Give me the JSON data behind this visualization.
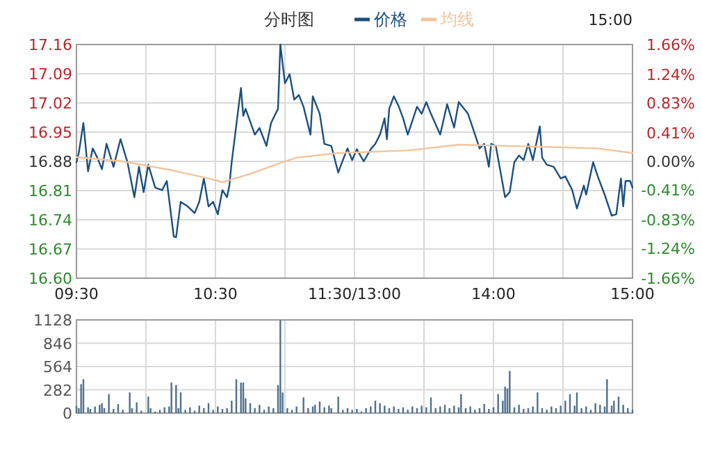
{
  "chart_data": [
    {
      "type": "line",
      "title": "分时图",
      "legend": "top",
      "grid": true,
      "annotations": [
        "15:00"
      ],
      "categories": [
        "09:30",
        null,
        null,
        null,
        null,
        null,
        null,
        null,
        null,
        null,
        null,
        null,
        null,
        null,
        null,
        null,
        null,
        null,
        null,
        null,
        null,
        null,
        null,
        null,
        null,
        null,
        null,
        null,
        null,
        null,
        null,
        null,
        null,
        null,
        null,
        null,
        null,
        null,
        null,
        null,
        null,
        null,
        null,
        null,
        null,
        null,
        null,
        null,
        null,
        null,
        null,
        null,
        null,
        null,
        null,
        null,
        null,
        null,
        null,
        null,
        "10:30",
        null,
        null,
        null,
        null,
        null,
        null,
        null,
        null,
        null,
        null,
        null,
        null,
        null,
        null,
        null,
        null,
        null,
        null,
        null,
        null,
        null,
        null,
        null,
        null,
        null,
        null,
        null,
        null,
        null,
        null,
        null,
        null,
        null,
        null,
        null,
        null,
        null,
        null,
        null,
        null,
        null,
        null,
        null,
        null,
        null,
        null,
        null,
        null,
        null,
        null,
        null,
        null,
        null,
        null,
        null,
        null,
        null,
        null,
        null,
        "11:30/13:00",
        null,
        null,
        null,
        null,
        null,
        null,
        null,
        null,
        null,
        null,
        null,
        null,
        null,
        null,
        null,
        null,
        null,
        null,
        null,
        null,
        null,
        null,
        null,
        null,
        null,
        null,
        null,
        null,
        null,
        null,
        null,
        null,
        null,
        null,
        null,
        null,
        null,
        null,
        null,
        null,
        null,
        null,
        null,
        null,
        null,
        null,
        null,
        null,
        null,
        null,
        null,
        null,
        null,
        null,
        null,
        null,
        null,
        null,
        null,
        "14:00",
        null,
        null,
        null,
        null,
        null,
        null,
        null,
        null,
        null,
        null,
        null,
        null,
        null,
        null,
        null,
        null,
        null,
        null,
        null,
        null,
        null,
        null,
        null,
        null,
        null,
        null,
        null,
        null,
        null,
        null,
        null,
        null,
        null,
        null,
        null,
        null,
        null,
        null,
        null,
        null,
        null,
        null,
        null,
        null,
        null,
        null,
        null,
        null,
        null,
        null,
        null,
        null,
        null,
        null,
        null,
        null,
        null,
        null,
        null,
        "15:00"
      ],
      "ylim": [
        16.6,
        17.16
      ],
      "yticks": [
        {
          "value": 16.6,
          "label": "16.60"
        },
        {
          "value": 16.67,
          "label": "16.67"
        },
        {
          "value": 16.74,
          "label": "16.74"
        },
        {
          "value": 16.81,
          "label": "16.81"
        },
        {
          "value": 16.88,
          "label": "16.88"
        },
        {
          "value": 16.95,
          "label": "16.95"
        },
        {
          "value": 17.02,
          "label": "17.02"
        },
        {
          "value": 17.09,
          "label": "17.09"
        },
        {
          "value": 17.16,
          "label": "17.16"
        }
      ],
      "y2lim": [
        -1.66,
        1.66
      ],
      "y2ticks": [
        {
          "value": -1.66,
          "label": "-1.66%"
        },
        {
          "value": -1.24,
          "label": "-1.24%"
        },
        {
          "value": -0.83,
          "label": "-0.83%"
        },
        {
          "value": -0.41,
          "label": "-0.41%"
        },
        {
          "value": 0,
          "label": "0.00%"
        },
        {
          "value": 0.41,
          "label": "0.41%"
        },
        {
          "value": 0.83,
          "label": "0.83%"
        },
        {
          "value": 1.24,
          "label": "1.24%"
        },
        {
          "value": 1.66,
          "label": "1.66%"
        }
      ],
      "series": [
        {
          "name": "价格",
          "color": "#1b4f7e",
          "values": [
            16.878,
            16.9,
            null,
            16.972,
            null,
            16.856,
            null,
            16.911,
            null,
            16.889,
            null,
            16.861,
            null,
            16.922,
            null,
            null,
            16.867,
            null,
            null,
            16.933,
            null,
            null,
            16.878,
            null,
            null,
            16.794,
            null,
            16.867,
            null,
            16.806,
            null,
            16.872,
            null,
            null,
            16.817,
            null,
            null,
            16.811,
            null,
            16.833,
            null,
            null,
            16.7,
            16.698,
            null,
            16.783,
            null,
            null,
            16.772,
            null,
            null,
            16.756,
            null,
            16.783,
            null,
            16.839,
            null,
            16.772,
            null,
            16.783,
            null,
            16.753,
            null,
            16.811,
            null,
            16.794,
            16.822,
            16.878,
            null,
            null,
            null,
            17.056,
            16.989,
            17.006,
            null,
            null,
            null,
            16.944,
            null,
            16.96,
            null,
            null,
            16.917,
            null,
            16.972,
            null,
            null,
            17.006,
            17.16,
            null,
            17.067,
            null,
            17.089,
            null,
            17.028,
            null,
            17.039,
            null,
            17.011,
            null,
            null,
            16.944,
            17.036,
            null,
            null,
            16.994,
            null,
            16.922,
            null,
            null,
            16.917,
            null,
            null,
            16.853,
            null,
            16.883,
            null,
            16.911,
            null,
            16.883,
            null,
            16.909,
            null,
            null,
            16.88,
            null,
            null,
            16.909,
            null,
            16.922,
            null,
            16.944,
            null,
            16.983,
            16.933,
            17.006,
            null,
            17.036,
            null,
            17.013,
            null,
            16.983,
            null,
            16.944,
            null,
            null,
            null,
            17.011,
            null,
            16.994,
            null,
            17.022,
            null,
            16.994,
            null,
            null,
            null,
            16.944,
            null,
            null,
            17.017,
            null,
            null,
            16.961,
            null,
            17.022,
            null,
            null,
            null,
            16.994,
            null,
            16.961,
            null,
            null,
            16.911,
            null,
            16.922,
            null,
            16.867,
            16.922,
            null,
            16.917,
            null,
            16.856,
            null,
            16.794,
            null,
            16.806,
            null,
            16.878,
            null,
            16.894,
            null,
            16.883,
            null,
            16.922,
            null,
            16.883,
            null,
            null,
            16.964,
            16.889,
            null,
            16.872,
            null,
            null,
            16.867,
            null,
            null,
            16.839,
            null,
            16.844,
            null,
            null,
            16.811,
            null,
            16.767,
            null,
            null,
            16.822,
            16.8,
            null,
            null,
            16.878,
            null,
            16.844,
            null,
            null,
            16.8,
            null,
            null,
            16.75,
            null,
            16.753,
            null,
            16.839,
            16.772,
            16.833,
            null,
            16.833,
            16.817
          ]
        },
        {
          "name": "均线",
          "color": "#f2c49c",
          "values": [
            16.89,
            null,
            null,
            null,
            null,
            null,
            null,
            null,
            null,
            null,
            null,
            null,
            null,
            null,
            null,
            null,
            null,
            null,
            null,
            null,
            16.88,
            null,
            null,
            null,
            null,
            null,
            null,
            null,
            null,
            null,
            null,
            null,
            null,
            null,
            null,
            null,
            null,
            null,
            null,
            null,
            16.86,
            null,
            null,
            null,
            null,
            null,
            null,
            null,
            null,
            null,
            null,
            null,
            null,
            null,
            null,
            null,
            null,
            16.839,
            null,
            null,
            null,
            null,
            null,
            16.83,
            null,
            null,
            null,
            null,
            null,
            null,
            null,
            null,
            null,
            null,
            null,
            16.85,
            null,
            null,
            null,
            null,
            null,
            null,
            null,
            null,
            null,
            null,
            null,
            null,
            null,
            16.878,
            null,
            null,
            null,
            null,
            null,
            16.889,
            null,
            null,
            null,
            null,
            null,
            null,
            null,
            null,
            null,
            null,
            null,
            null,
            null,
            null,
            null,
            null,
            null,
            16.9,
            null,
            null,
            null,
            null,
            null,
            null,
            null,
            null,
            null,
            null,
            null,
            null,
            null,
            null,
            null,
            null,
            null,
            null,
            null,
            null,
            null,
            null,
            null,
            null,
            null,
            null,
            null,
            null,
            null,
            16.906,
            null,
            null,
            null,
            null,
            null,
            null,
            null,
            null,
            null,
            null,
            null,
            null,
            null,
            null,
            null,
            null,
            null,
            null,
            null,
            null,
            null,
            16.92,
            null,
            null,
            null,
            null,
            null,
            null,
            null,
            null,
            null,
            null,
            null,
            null,
            null,
            null,
            null,
            null,
            null,
            null,
            null,
            null,
            null,
            null,
            null,
            null,
            null,
            null,
            null,
            null,
            null,
            null,
            null,
            null,
            null,
            null,
            16.915,
            null,
            null,
            null,
            null,
            null,
            null,
            null,
            null,
            null,
            null,
            null,
            null,
            null,
            null,
            null,
            null,
            null,
            null,
            null,
            null,
            null,
            null,
            null,
            null,
            16.911,
            null,
            null,
            null,
            null,
            null,
            null,
            null,
            null,
            null,
            null,
            null,
            null,
            null,
            null,
            16.9
          ]
        }
      ]
    },
    {
      "type": "bar",
      "grid": true,
      "tick_labels": "y",
      "color": "#4f6f8f",
      "categories": [
        null,
        null,
        null,
        null,
        null,
        null,
        null,
        null,
        null,
        null,
        null,
        null,
        null,
        null,
        null,
        null,
        null,
        null,
        null,
        null,
        null,
        null,
        null,
        null,
        null,
        null,
        null,
        null,
        null,
        null,
        null,
        null,
        null,
        null,
        null,
        null,
        null,
        null,
        null,
        null,
        null,
        null,
        null,
        null,
        null,
        null,
        null,
        null,
        null,
        null,
        null,
        null,
        null,
        null,
        null,
        null,
        null,
        null,
        null,
        null,
        null,
        null,
        null,
        null,
        null,
        null,
        null,
        null,
        null,
        null,
        null,
        null,
        null,
        null,
        null,
        null,
        null,
        null,
        null,
        null,
        null,
        null,
        null,
        null,
        null,
        null,
        null,
        null,
        null,
        null,
        null,
        null,
        null,
        null,
        null,
        null,
        null,
        null,
        null,
        null,
        null,
        null,
        null,
        null,
        null,
        null,
        null,
        null,
        null,
        null,
        null,
        null,
        null,
        null,
        null,
        null,
        null,
        null,
        null,
        null,
        null,
        null,
        null,
        null,
        null,
        null,
        null,
        null,
        null,
        null,
        null,
        null,
        null,
        null,
        null,
        null,
        null,
        null,
        null,
        null,
        null,
        null,
        null,
        null,
        null,
        null,
        null,
        null,
        null,
        null,
        null,
        null,
        null,
        null,
        null,
        null,
        null,
        null,
        null,
        null,
        null,
        null,
        null,
        null,
        null,
        null,
        null,
        null,
        null,
        null,
        null,
        null,
        null,
        null,
        null,
        null,
        null,
        null,
        null,
        null,
        null,
        null,
        null,
        null,
        null,
        null,
        null,
        null,
        null,
        null,
        null,
        null,
        null,
        null,
        null,
        null,
        null,
        null,
        null,
        null,
        null,
        null,
        null,
        null,
        null,
        null,
        null,
        null,
        null,
        null,
        null,
        null,
        null,
        null,
        null,
        null,
        null,
        null,
        null,
        null,
        null,
        null,
        null,
        null,
        null,
        null,
        null,
        null,
        null,
        null,
        null,
        null,
        null,
        null,
        null,
        null,
        null,
        null,
        null,
        null,
        null
      ],
      "ylim": [
        0,
        1128
      ],
      "yticks": [
        0,
        282,
        564,
        846,
        1128
      ],
      "values": [
        90,
        60,
        350,
        410,
        null,
        70,
        50,
        null,
        80,
        null,
        100,
        120,
        60,
        null,
        230,
        null,
        50,
        null,
        110,
        null,
        40,
        null,
        null,
        250,
        60,
        null,
        130,
        null,
        30,
        null,
        null,
        200,
        60,
        null,
        20,
        null,
        40,
        null,
        70,
        null,
        80,
        370,
        null,
        340,
        60,
        250,
        null,
        40,
        null,
        70,
        null,
        30,
        null,
        90,
        null,
        60,
        null,
        120,
        null,
        40,
        null,
        80,
        null,
        50,
        null,
        60,
        null,
        150,
        null,
        410,
        null,
        370,
        370,
        180,
        null,
        120,
        null,
        60,
        null,
        100,
        null,
        40,
        null,
        80,
        null,
        60,
        null,
        340,
        1128,
        250,
        null,
        60,
        null,
        40,
        null,
        80,
        null,
        null,
        190,
        null,
        60,
        null,
        80,
        100,
        null,
        140,
        null,
        70,
        null,
        90,
        60,
        null,
        null,
        200,
        null,
        40,
        null,
        60,
        null,
        40,
        null,
        50,
        null,
        20,
        null,
        60,
        null,
        80,
        null,
        150,
        null,
        120,
        null,
        90,
        null,
        60,
        null,
        80,
        null,
        50,
        null,
        70,
        null,
        40,
        null,
        80,
        null,
        60,
        null,
        90,
        null,
        70,
        null,
        190,
        null,
        60,
        null,
        80,
        null,
        100,
        null,
        60,
        null,
        90,
        null,
        70,
        230,
        null,
        60,
        null,
        80,
        null,
        40,
        null,
        60,
        null,
        110,
        null,
        50,
        null,
        70,
        null,
        230,
        null,
        150,
        320,
        300,
        510,
        null,
        70,
        null,
        100,
        null,
        50,
        null,
        60,
        null,
        80,
        null,
        250,
        null,
        60,
        null,
        40,
        null,
        80,
        null,
        60,
        null,
        90,
        null,
        150,
        null,
        230,
        null,
        90,
        250,
        null,
        60,
        null,
        80,
        null,
        40,
        null,
        120,
        null,
        100,
        null,
        80,
        410,
        null,
        90,
        150,
        null,
        200,
        null,
        100,
        null,
        60,
        null,
        40
      ]
    }
  ]
}
